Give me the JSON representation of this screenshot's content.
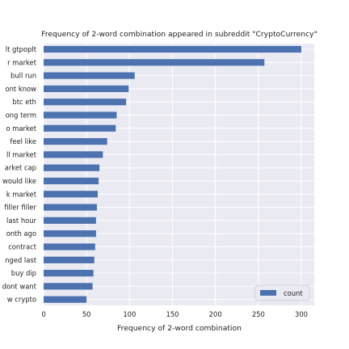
{
  "chart_data": {
    "type": "bar",
    "orientation": "horizontal",
    "title": "Frequency of 2-word combination appeared in subreddit \"CryptoCurrency\"",
    "xlabel": "Frequency of 2-word combination",
    "ylabel": "",
    "xlim": [
      0,
      310
    ],
    "xticks": [
      0,
      50,
      100,
      150,
      200,
      250,
      300
    ],
    "grid": true,
    "legend_position": "lower-right",
    "categories": [
      "lt gtpoplt",
      "r market",
      "bull run",
      "ont know",
      "btc eth",
      "ong term",
      "o market",
      "feel like",
      "ll market",
      "arket cap",
      "would like",
      "k market",
      "filler filler",
      "last hour",
      "onth ago",
      "contract",
      "nged last",
      "buy dip",
      "dont want",
      "w crypto"
    ],
    "series": [
      {
        "name": "count",
        "color": "#4c72b0",
        "values": [
          300,
          257,
          106,
          99,
          96,
          85,
          84,
          74,
          69,
          65,
          64,
          63,
          62,
          61,
          61,
          60,
          59,
          58,
          57,
          50
        ]
      }
    ]
  }
}
